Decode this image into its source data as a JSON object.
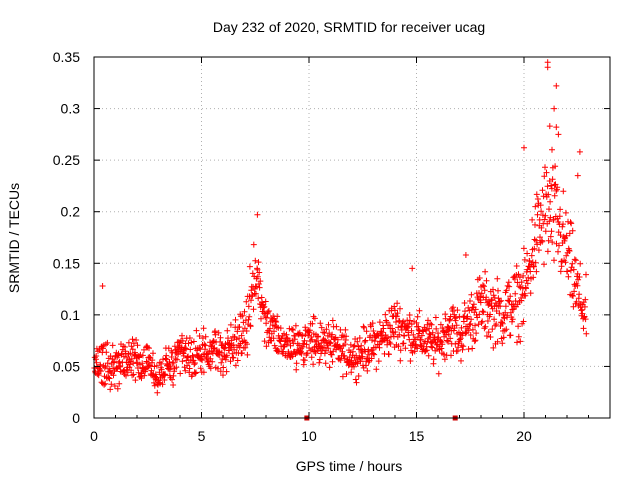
{
  "chart_data": {
    "type": "scatter",
    "title": "Day 232 of 2020, SRMTID for receiver ucag",
    "xlabel": "GPS time / hours",
    "ylabel": "SRMTID / TECUs",
    "xlim": [
      0,
      24
    ],
    "ylim": [
      0,
      0.35
    ],
    "xticks": [
      0,
      5,
      10,
      15,
      20
    ],
    "xtick_labels": [
      "0",
      "5",
      "10",
      "15",
      "20"
    ],
    "yticks": [
      0,
      0.05,
      0.1,
      0.15,
      0.2,
      0.25,
      0.3,
      0.35
    ],
    "ytick_labels": [
      "0",
      "0.05",
      "0.1",
      "0.15",
      "0.2",
      "0.25",
      "0.3",
      "0.35"
    ],
    "grid": true,
    "marker": "+",
    "series_color": "#ff0000",
    "marker_color": "#cc0000",
    "sample_interval_hours": 0.0167,
    "trend": [
      {
        "t": 0.0,
        "center": 0.055,
        "spread": 0.025
      },
      {
        "t": 1.0,
        "center": 0.05,
        "spread": 0.022
      },
      {
        "t": 2.0,
        "center": 0.06,
        "spread": 0.022
      },
      {
        "t": 3.0,
        "center": 0.04,
        "spread": 0.018
      },
      {
        "t": 4.0,
        "center": 0.06,
        "spread": 0.022
      },
      {
        "t": 5.0,
        "center": 0.06,
        "spread": 0.025
      },
      {
        "t": 6.0,
        "center": 0.065,
        "spread": 0.025
      },
      {
        "t": 7.0,
        "center": 0.08,
        "spread": 0.03
      },
      {
        "t": 7.5,
        "center": 0.14,
        "spread": 0.035
      },
      {
        "t": 8.0,
        "center": 0.09,
        "spread": 0.03
      },
      {
        "t": 9.0,
        "center": 0.07,
        "spread": 0.025
      },
      {
        "t": 10.0,
        "center": 0.075,
        "spread": 0.025
      },
      {
        "t": 11.0,
        "center": 0.07,
        "spread": 0.025
      },
      {
        "t": 12.0,
        "center": 0.06,
        "spread": 0.022
      },
      {
        "t": 13.0,
        "center": 0.07,
        "spread": 0.025
      },
      {
        "t": 14.0,
        "center": 0.09,
        "spread": 0.03
      },
      {
        "t": 15.0,
        "center": 0.08,
        "spread": 0.025
      },
      {
        "t": 16.0,
        "center": 0.07,
        "spread": 0.025
      },
      {
        "t": 16.5,
        "center": 0.09,
        "spread": 0.03
      },
      {
        "t": 17.0,
        "center": 0.08,
        "spread": 0.03
      },
      {
        "t": 18.0,
        "center": 0.11,
        "spread": 0.035
      },
      {
        "t": 19.0,
        "center": 0.1,
        "spread": 0.035
      },
      {
        "t": 20.0,
        "center": 0.12,
        "spread": 0.04
      },
      {
        "t": 20.5,
        "center": 0.17,
        "spread": 0.05
      },
      {
        "t": 21.0,
        "center": 0.2,
        "spread": 0.06
      },
      {
        "t": 21.5,
        "center": 0.19,
        "spread": 0.06
      },
      {
        "t": 22.0,
        "center": 0.16,
        "spread": 0.05
      },
      {
        "t": 22.5,
        "center": 0.12,
        "spread": 0.04
      },
      {
        "t": 22.9,
        "center": 0.1,
        "spread": 0.035
      }
    ],
    "notable_points": [
      {
        "x": 0.4,
        "y": 0.128
      },
      {
        "x": 7.6,
        "y": 0.197
      },
      {
        "x": 14.8,
        "y": 0.145
      },
      {
        "x": 17.3,
        "y": 0.158
      },
      {
        "x": 20.0,
        "y": 0.262
      },
      {
        "x": 21.1,
        "y": 0.345
      },
      {
        "x": 21.1,
        "y": 0.34
      },
      {
        "x": 21.5,
        "y": 0.322
      },
      {
        "x": 21.4,
        "y": 0.3
      },
      {
        "x": 21.2,
        "y": 0.283
      },
      {
        "x": 21.5,
        "y": 0.282
      },
      {
        "x": 21.6,
        "y": 0.275
      },
      {
        "x": 21.3,
        "y": 0.26
      },
      {
        "x": 22.6,
        "y": 0.258
      },
      {
        "x": 22.5,
        "y": 0.235
      }
    ],
    "floor_markers": [
      {
        "x": 9.9,
        "y": 0
      },
      {
        "x": 16.8,
        "y": 0
      }
    ]
  }
}
